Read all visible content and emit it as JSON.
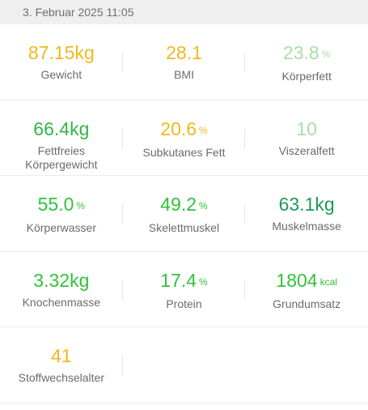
{
  "header": {
    "date": "3. Februar 2025 11:05"
  },
  "rows": [
    [
      {
        "value": "87.15",
        "unit": "kg",
        "label": "Gewicht",
        "color": "#f2b81c"
      },
      {
        "value": "28.1",
        "unit": "",
        "label": "BMI",
        "color": "#f2b81c"
      },
      {
        "value": "23.8",
        "unit": "%",
        "label": "Körperfett",
        "color": "#a8dfa8"
      }
    ],
    [
      {
        "value": "66.4",
        "unit": "kg",
        "label": "Fettfreies Körpergewicht",
        "color": "#33b54a"
      },
      {
        "value": "20.6",
        "unit": "%",
        "label": "Subkutanes Fett",
        "color": "#f2b81c"
      },
      {
        "value": "10",
        "unit": "",
        "label": "Viszeralfett",
        "color": "#a8dfa8"
      }
    ],
    [
      {
        "value": "55.0",
        "unit": "%",
        "label": "Körperwasser",
        "color": "#33c13b"
      },
      {
        "value": "49.2",
        "unit": "%",
        "label": "Skelettmuskel",
        "color": "#33c13b"
      },
      {
        "value": "63.1",
        "unit": "kg",
        "label": "Muskelmasse",
        "color": "#1e9a57"
      }
    ],
    [
      {
        "value": "3.32",
        "unit": "kg",
        "label": "Knochenmasse",
        "color": "#33c13b"
      },
      {
        "value": "17.4",
        "unit": "%",
        "label": "Protein",
        "color": "#33c13b"
      },
      {
        "value": "1804",
        "unit": "kcal",
        "label": "Grundumsatz",
        "color": "#33c13b"
      }
    ],
    [
      {
        "value": "41",
        "unit": "",
        "label": "Stoffwechselalter",
        "color": "#f2b81c"
      }
    ]
  ]
}
